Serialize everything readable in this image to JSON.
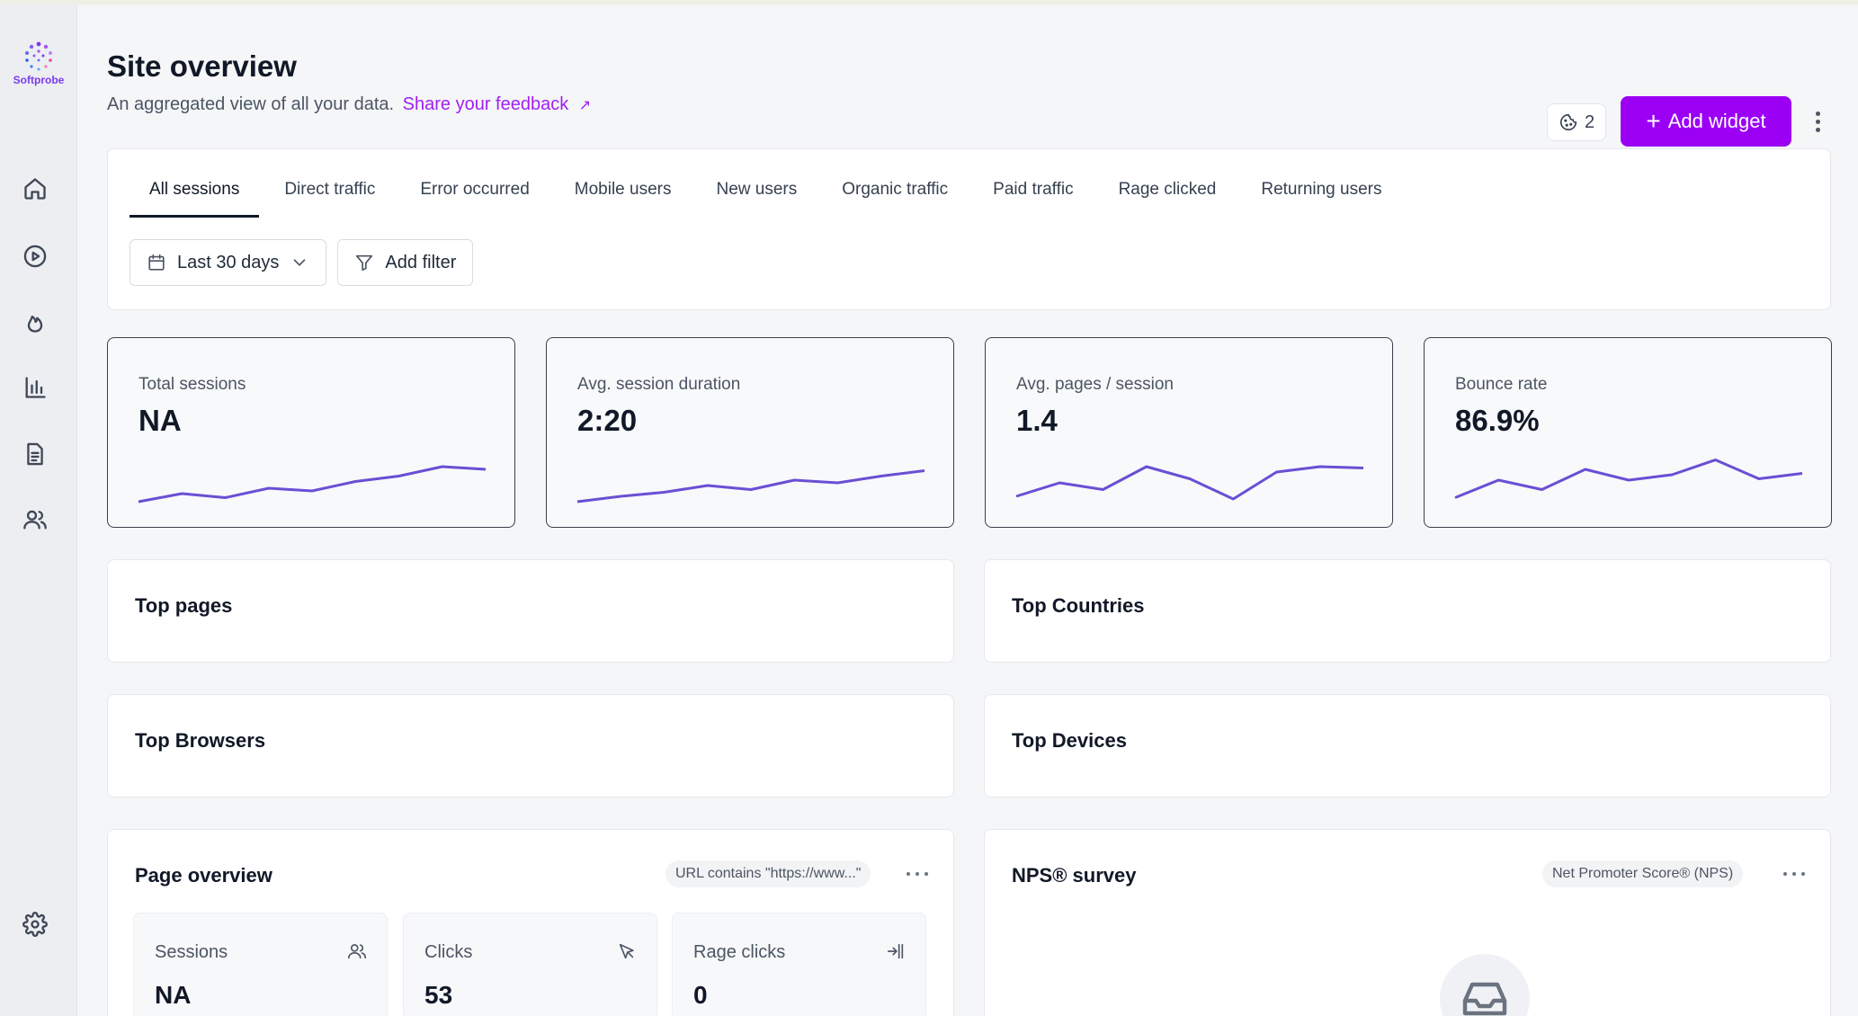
{
  "app": {
    "logo_text": "Softprobe",
    "logo_icon": "dotted-circle-logo"
  },
  "sidebar": {
    "items": [
      {
        "name": "home",
        "icon": "home-icon"
      },
      {
        "name": "recordings",
        "icon": "play-circle-icon"
      },
      {
        "name": "heatmaps",
        "icon": "flame-icon"
      },
      {
        "name": "analytics",
        "icon": "bar-chart-icon"
      },
      {
        "name": "reports",
        "icon": "document-icon"
      },
      {
        "name": "users",
        "icon": "users-icon"
      },
      {
        "name": "settings",
        "icon": "gear-icon"
      }
    ]
  },
  "header": {
    "title": "Site overview",
    "subtitle": "An aggregated view of all your data.",
    "feedback_link": "Share your feedback",
    "feedback_icon": "external-arrow-icon",
    "counter_value": "2",
    "counter_icon": "cookie-icon",
    "add_widget_label": "Add widget"
  },
  "tabs": [
    {
      "label": "All sessions",
      "active": true
    },
    {
      "label": "Direct traffic"
    },
    {
      "label": "Error occurred"
    },
    {
      "label": "Mobile users"
    },
    {
      "label": "New users"
    },
    {
      "label": "Organic traffic"
    },
    {
      "label": "Paid traffic"
    },
    {
      "label": "Rage clicked"
    },
    {
      "label": "Returning users"
    }
  ],
  "filters": {
    "date_range": "Last 30 days",
    "add_filter": "Add filter"
  },
  "colors": {
    "accent": "#9b00f5",
    "sparkline": "#6a4fd4",
    "link": "#a020f0"
  },
  "metrics": [
    {
      "label": "Total sessions",
      "value": "NA",
      "trend": [
        2,
        8,
        5,
        12,
        10,
        17,
        21,
        28,
        26
      ]
    },
    {
      "label": "Avg. session duration",
      "value": "2:20",
      "trend": [
        2,
        6,
        9,
        14,
        11,
        18,
        16,
        21,
        25
      ]
    },
    {
      "label": "Avg. pages / session",
      "value": "1.4",
      "trend": [
        6,
        16,
        11,
        28,
        19,
        4,
        24,
        28,
        27
      ]
    },
    {
      "label": "Bounce rate",
      "value": "86.9%",
      "trend": [
        5,
        18,
        11,
        26,
        18,
        22,
        33,
        19,
        23
      ]
    }
  ],
  "widgets": {
    "top_pages": "Top pages",
    "top_countries": "Top Countries",
    "top_browsers": "Top Browsers",
    "top_devices": "Top Devices",
    "page_overview": {
      "title": "Page overview",
      "tag": "URL contains \"https://www...\"",
      "stats": [
        {
          "label": "Sessions",
          "value": "NA",
          "icon": "users-icon"
        },
        {
          "label": "Clicks",
          "value": "53",
          "icon": "cursor-icon"
        },
        {
          "label": "Rage clicks",
          "value": "0",
          "icon": "rage-click-icon"
        }
      ]
    },
    "nps_survey": {
      "title": "NPS® survey",
      "tag": "Net Promoter Score® (NPS)",
      "empty_icon": "inbox-icon"
    }
  }
}
